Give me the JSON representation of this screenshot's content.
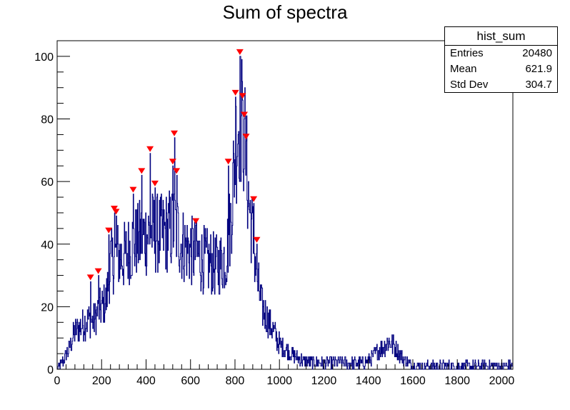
{
  "chart_data": {
    "type": "histogram",
    "title": "Sum of spectra",
    "xlabel": "",
    "ylabel": "",
    "xlim": [
      0,
      2050
    ],
    "ylim": [
      0,
      105
    ],
    "xticks": [
      0,
      200,
      400,
      600,
      800,
      1000,
      1200,
      1400,
      1600,
      1800,
      2000
    ],
    "yticks": [
      0,
      20,
      40,
      60,
      80,
      100
    ],
    "line_color": "#00007f",
    "marker_color": "#ff0000",
    "stats_box": {
      "name": "hist_sum",
      "entries_label": "Entries",
      "entries": "20480",
      "mean_label": "Mean",
      "mean": "621.9",
      "stddev_label": "Std Dev",
      "stddev": "304.7"
    },
    "envelope": [
      [
        0,
        0
      ],
      [
        20,
        2
      ],
      [
        50,
        6
      ],
      [
        80,
        12
      ],
      [
        110,
        14
      ],
      [
        140,
        16
      ],
      [
        160,
        15
      ],
      [
        180,
        18
      ],
      [
        200,
        20
      ],
      [
        220,
        22
      ],
      [
        240,
        34
      ],
      [
        270,
        36
      ],
      [
        300,
        36
      ],
      [
        340,
        40
      ],
      [
        380,
        42
      ],
      [
        420,
        44
      ],
      [
        460,
        43
      ],
      [
        500,
        44
      ],
      [
        530,
        46
      ],
      [
        560,
        40
      ],
      [
        600,
        38
      ],
      [
        640,
        36
      ],
      [
        680,
        34
      ],
      [
        720,
        33
      ],
      [
        760,
        36
      ],
      [
        780,
        48
      ],
      [
        800,
        70
      ],
      [
        820,
        82
      ],
      [
        840,
        76
      ],
      [
        860,
        55
      ],
      [
        880,
        42
      ],
      [
        900,
        28
      ],
      [
        920,
        20
      ],
      [
        960,
        14
      ],
      [
        1000,
        8
      ],
      [
        1050,
        5
      ],
      [
        1100,
        3
      ],
      [
        1150,
        2
      ],
      [
        1200,
        2
      ],
      [
        1300,
        2
      ],
      [
        1380,
        2
      ],
      [
        1420,
        4
      ],
      [
        1460,
        7
      ],
      [
        1490,
        9
      ],
      [
        1520,
        7
      ],
      [
        1560,
        3
      ],
      [
        1600,
        1
      ],
      [
        1700,
        1
      ],
      [
        1800,
        1
      ],
      [
        1900,
        1
      ],
      [
        2000,
        1
      ],
      [
        2048,
        1
      ]
    ],
    "peaks": [
      [
        150,
        28
      ],
      [
        185,
        30
      ],
      [
        232,
        43
      ],
      [
        257,
        50
      ],
      [
        265,
        49
      ],
      [
        342,
        56
      ],
      [
        380,
        62
      ],
      [
        440,
        58
      ],
      [
        418,
        69
      ],
      [
        520,
        65
      ],
      [
        527,
        74
      ],
      [
        537,
        62
      ],
      [
        624,
        46
      ],
      [
        770,
        65
      ],
      [
        802,
        87
      ],
      [
        822,
        100
      ],
      [
        834,
        86
      ],
      [
        842,
        80
      ],
      [
        850,
        73
      ],
      [
        884,
        53
      ],
      [
        898,
        40
      ]
    ]
  }
}
